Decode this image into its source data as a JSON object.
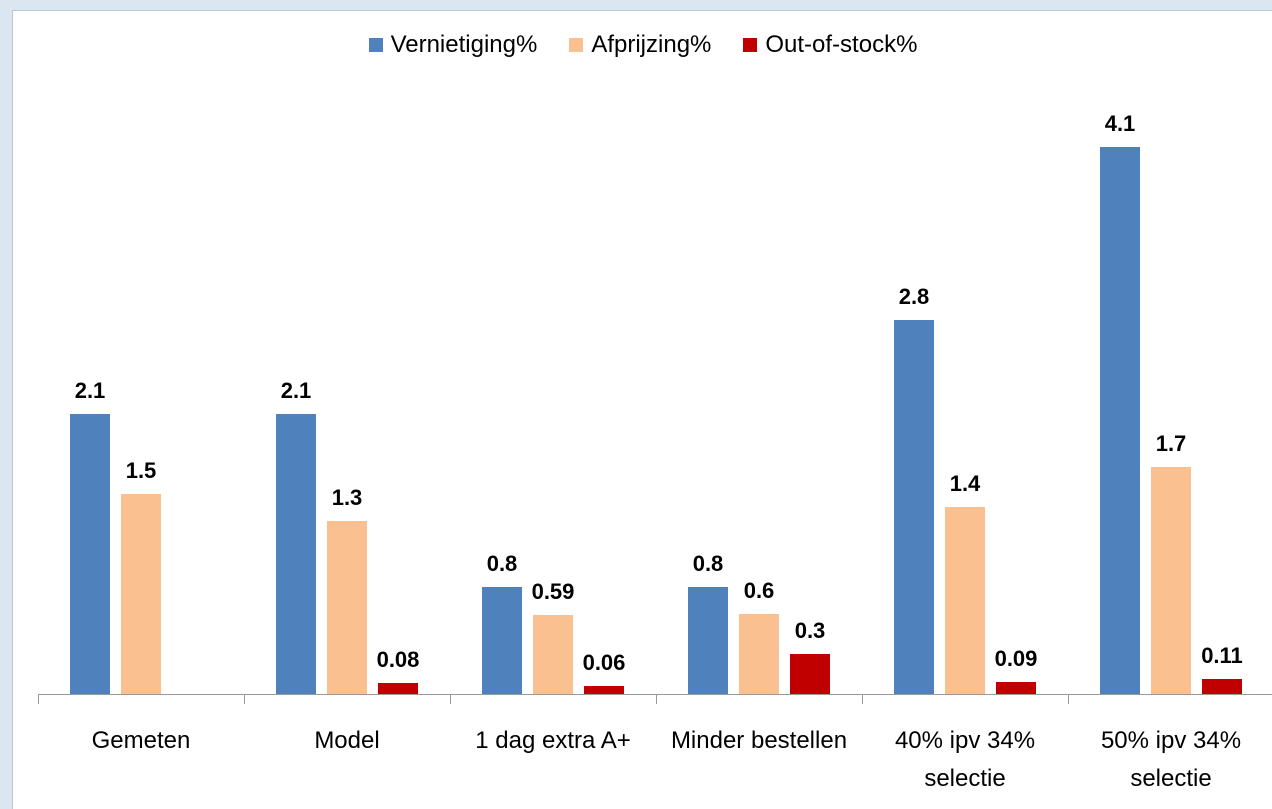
{
  "chart_data": {
    "type": "bar",
    "categories": [
      "Gemeten",
      "Model",
      "1 dag extra A+",
      "Minder bestellen",
      "40% ipv 34% selectie",
      "50% ipv 34% selectie"
    ],
    "series": [
      {
        "name": "Vernietiging%",
        "color": "#4f81bd",
        "values": [
          2.1,
          2.1,
          0.8,
          0.8,
          2.8,
          4.1
        ]
      },
      {
        "name": "Afprijzing%",
        "color": "#fac090",
        "values": [
          1.5,
          1.3,
          0.59,
          0.6,
          1.4,
          1.7
        ]
      },
      {
        "name": "Out-of-stock%",
        "color": "#c00000",
        "values": [
          null,
          0.08,
          0.06,
          0.3,
          0.09,
          0.11
        ]
      }
    ],
    "legend": "top"
  }
}
